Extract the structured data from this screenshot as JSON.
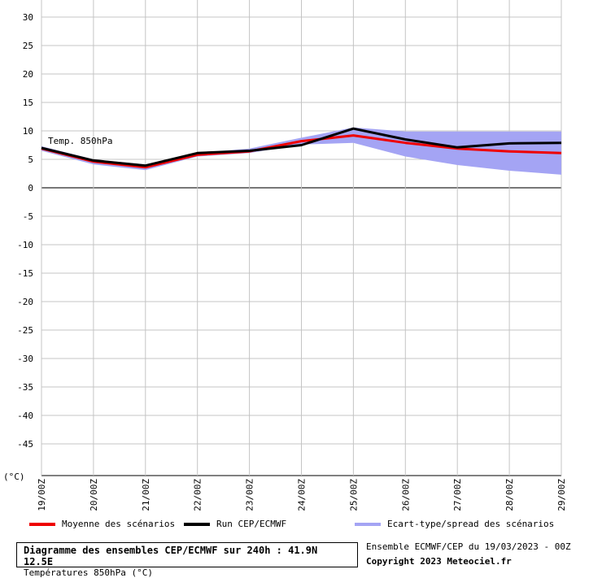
{
  "chart_data": {
    "type": "line",
    "title": "Diagramme des ensembles CEP/ECMWF sur 240h : 41.9N 12.5E",
    "subtitle": "Températures 850hPa (°C)",
    "ylabel": "(°C)",
    "annotation": "Temp. 850hPa",
    "ylim": [
      -50,
      30
    ],
    "yticks": [
      30,
      25,
      20,
      15,
      10,
      5,
      0,
      -5,
      -10,
      -15,
      -20,
      -25,
      -30,
      -35,
      -40,
      -45
    ],
    "x": [
      "19/00Z",
      "20/00Z",
      "21/00Z",
      "22/00Z",
      "23/00Z",
      "24/00Z",
      "25/00Z",
      "26/00Z",
      "27/00Z",
      "28/00Z",
      "29/00Z"
    ],
    "grid": true,
    "legend_position": "bottom",
    "series": [
      {
        "name": "Moyenne des scénarios",
        "color": "#ee0000",
        "values": [
          6.9,
          4.6,
          3.6,
          5.8,
          6.4,
          8.2,
          9.2,
          7.9,
          6.9,
          6.4,
          6.1
        ]
      },
      {
        "name": "Run CEP/ECMWF",
        "color": "#000000",
        "values": [
          7.0,
          4.8,
          3.9,
          6.1,
          6.5,
          7.5,
          10.4,
          8.5,
          7.1,
          7.8,
          7.9
        ]
      }
    ],
    "spread": {
      "name": "Ecart-type/spread des scénarios",
      "color": "#a4a4f4",
      "upper": [
        7.3,
        5.0,
        4.1,
        6.1,
        6.9,
        8.8,
        10.6,
        9.9,
        9.9,
        9.9,
        9.9
      ],
      "lower": [
        6.5,
        4.1,
        3.1,
        5.5,
        6.1,
        7.6,
        7.9,
        5.5,
        4.0,
        3.0,
        2.3
      ]
    }
  },
  "footer": {
    "ensemble_info": "Ensemble ECMWF/CEP du 19/03/2023 - 00Z",
    "copyright": "Copyright 2023 Meteociel.fr"
  }
}
